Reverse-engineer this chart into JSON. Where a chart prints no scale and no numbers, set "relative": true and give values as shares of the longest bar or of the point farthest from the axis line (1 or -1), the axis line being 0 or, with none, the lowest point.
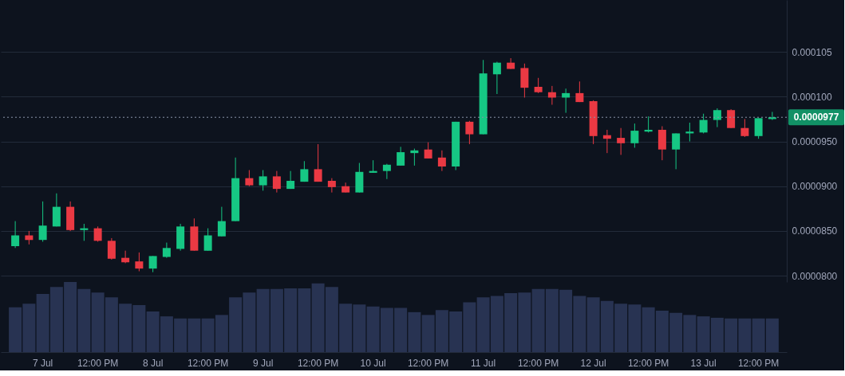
{
  "chart_data": [
    {
      "type": "candlestick",
      "categories": [
        null,
        null,
        null,
        null,
        null,
        null,
        null,
        null,
        null,
        null,
        null,
        null,
        null,
        null,
        null,
        null,
        null,
        null,
        null,
        null,
        null,
        null,
        null,
        null,
        null,
        null,
        null,
        null,
        null,
        null,
        null,
        null,
        null,
        null,
        null,
        null,
        null,
        null,
        null,
        null,
        null,
        null,
        null,
        null,
        null,
        null,
        null,
        null,
        null,
        null,
        null,
        null,
        null,
        null,
        null,
        null
      ],
      "ohlc": [
        [
          8.33e-05,
          8.61e-05,
          8.31e-05,
          8.45e-05
        ],
        [
          8.45e-05,
          8.5e-05,
          8.35e-05,
          8.4e-05
        ],
        [
          8.4e-05,
          8.83e-05,
          8.38e-05,
          8.56e-05
        ],
        [
          8.55e-05,
          8.92e-05,
          8.55e-05,
          8.77e-05
        ],
        [
          8.77e-05,
          8.83e-05,
          8.5e-05,
          8.51e-05
        ],
        [
          8.51e-05,
          8.58e-05,
          8.39e-05,
          8.53e-05
        ],
        [
          8.53e-05,
          8.55e-05,
          8.38e-05,
          8.39e-05
        ],
        [
          8.39e-05,
          8.42e-05,
          8.18e-05,
          8.19e-05
        ],
        [
          8.2e-05,
          8.28e-05,
          8.14e-05,
          8.15e-05
        ],
        [
          8.16e-05,
          8.26e-05,
          8.05e-05,
          8.08e-05
        ],
        [
          8.08e-05,
          8.22e-05,
          8.04e-05,
          8.22e-05
        ],
        [
          8.21e-05,
          8.37e-05,
          8.2e-05,
          8.31e-05
        ],
        [
          8.3e-05,
          8.58e-05,
          8.28e-05,
          8.55e-05
        ],
        [
          8.55e-05,
          8.64e-05,
          8.28e-05,
          8.28e-05
        ],
        [
          8.28e-05,
          8.53e-05,
          8.28e-05,
          8.45e-05
        ],
        [
          8.44e-05,
          8.77e-05,
          8.44e-05,
          8.61e-05
        ],
        [
          8.61e-05,
          9.32e-05,
          8.61e-05,
          9.09e-05
        ],
        [
          9.09e-05,
          9.18e-05,
          9e-05,
          9.01e-05
        ],
        [
          9.01e-05,
          9.18e-05,
          8.95e-05,
          9.11e-05
        ],
        [
          9.11e-05,
          9.17e-05,
          8.93e-05,
          8.97e-05
        ],
        [
          8.97e-05,
          9.17e-05,
          8.97e-05,
          9.06e-05
        ],
        [
          9.05e-05,
          9.28e-05,
          9.05e-05,
          9.19e-05
        ],
        [
          9.19e-05,
          9.47e-05,
          9.05e-05,
          9.05e-05
        ],
        [
          9.06e-05,
          9.09e-05,
          8.93e-05,
          8.99e-05
        ],
        [
          9e-05,
          9.04e-05,
          8.93e-05,
          8.93e-05
        ],
        [
          8.93e-05,
          9.26e-05,
          8.93e-05,
          9.16e-05
        ],
        [
          9.15e-05,
          9.29e-05,
          9.15e-05,
          9.17e-05
        ],
        [
          9.17e-05,
          9.25e-05,
          9.08e-05,
          9.24e-05
        ],
        [
          9.23e-05,
          9.44e-05,
          9.23e-05,
          9.38e-05
        ],
        [
          9.37e-05,
          9.42e-05,
          9.23e-05,
          9.4e-05
        ],
        [
          9.41e-05,
          9.49e-05,
          9.31e-05,
          9.31e-05
        ],
        [
          9.32e-05,
          9.4e-05,
          9.17e-05,
          9.22e-05
        ],
        [
          9.22e-05,
          9.72e-05,
          9.18e-05,
          9.72e-05
        ],
        [
          9.72e-05,
          9.73e-05,
          9.47e-05,
          9.58e-05
        ],
        [
          9.58e-05,
          0.0001041,
          9.58e-05,
          0.0001026
        ],
        [
          0.0001025,
          0.0001039,
          0.0001003,
          0.0001038
        ],
        [
          0.0001038,
          0.0001043,
          0.0001031,
          0.0001031
        ],
        [
          0.0001032,
          0.0001037,
          9.99e-05,
          0.000101
        ],
        [
          0.0001011,
          0.0001021,
          0.0001004,
          0.0001005
        ],
        [
          0.0001005,
          0.0001012,
          9.91e-05,
          9.99e-05
        ],
        [
          9.99e-05,
          0.0001009,
          9.82e-05,
          0.0001004
        ],
        [
          0.0001004,
          0.0001017,
          9.94e-05,
          9.94e-05
        ],
        [
          9.95e-05,
          9.96e-05,
          9.47e-05,
          9.56e-05
        ],
        [
          9.57e-05,
          9.63e-05,
          9.37e-05,
          9.53e-05
        ],
        [
          9.54e-05,
          9.65e-05,
          9.35e-05,
          9.48e-05
        ],
        [
          9.48e-05,
          9.7e-05,
          9.43e-05,
          9.62e-05
        ],
        [
          9.61e-05,
          9.78e-05,
          9.6e-05,
          9.63e-05
        ],
        [
          9.63e-05,
          9.67e-05,
          9.29e-05,
          9.41e-05
        ],
        [
          9.41e-05,
          9.59e-05,
          9.19e-05,
          9.59e-05
        ],
        [
          9.59e-05,
          9.71e-05,
          9.5e-05,
          9.61e-05
        ],
        [
          9.6e-05,
          9.81e-05,
          9.59e-05,
          9.74e-05
        ],
        [
          9.74e-05,
          9.87e-05,
          9.66e-05,
          9.85e-05
        ],
        [
          9.85e-05,
          9.86e-05,
          9.65e-05,
          9.65e-05
        ],
        [
          9.65e-05,
          9.75e-05,
          9.55e-05,
          9.56e-05
        ],
        [
          9.56e-05,
          9.76e-05,
          9.53e-05,
          9.76e-05
        ],
        [
          9.75e-05,
          9.83e-05,
          9.74e-05,
          9.77e-05
        ]
      ],
      "ylim": [
        7.93e-05,
        0.0001108
      ],
      "yticks": [
        {
          "value": 8e-05,
          "label": "0.0000800"
        },
        {
          "value": 8.5e-05,
          "label": "0.0000850"
        },
        {
          "value": 9e-05,
          "label": "0.0000900"
        },
        {
          "value": 9.5e-05,
          "label": "0.0000950"
        },
        {
          "value": 0.0001,
          "label": "0.000100"
        },
        {
          "value": 0.000105,
          "label": "0.000105"
        }
      ],
      "ref_lines": [
        {
          "axis": "y",
          "value": 9.77e-05,
          "label": "0.0000977",
          "color": "#8a93a8",
          "line_style": "dotted"
        }
      ],
      "grid": "y",
      "tick_labels": "y"
    },
    {
      "type": "bar",
      "categories": [
        null,
        null,
        "7 Jul",
        null,
        null,
        null,
        "12:00 PM",
        null,
        null,
        null,
        "8 Jul",
        null,
        null,
        null,
        "12:00 PM",
        null,
        null,
        null,
        "9 Jul",
        null,
        null,
        null,
        "12:00 PM",
        null,
        null,
        null,
        "10 Jul",
        null,
        null,
        null,
        "12:00 PM",
        null,
        null,
        null,
        "11 Jul",
        null,
        null,
        null,
        "12:00 PM",
        null,
        null,
        null,
        "12 Jul",
        null,
        null,
        null,
        "12:00 PM",
        null,
        null,
        null,
        "13 Jul",
        null,
        null,
        null,
        "12:00 PM",
        null
      ],
      "series": [
        {
          "color": "#283352",
          "values": [
            0.64,
            0.69,
            0.83,
            0.93,
            1,
            0.9,
            0.85,
            0.78,
            0.69,
            0.67,
            0.58,
            0.51,
            0.48,
            0.48,
            0.48,
            0.53,
            0.78,
            0.85,
            0.9,
            0.9,
            0.91,
            0.91,
            0.98,
            0.93,
            0.69,
            0.68,
            0.65,
            0.63,
            0.63,
            0.57,
            0.53,
            0.6,
            0.58,
            0.71,
            0.78,
            0.8,
            0.84,
            0.85,
            0.9,
            0.9,
            0.89,
            0.8,
            0.78,
            0.73,
            0.69,
            0.68,
            0.64,
            0.59,
            0.56,
            0.53,
            0.51,
            0.49,
            0.48,
            0.48,
            0.48,
            0.48
          ]
        }
      ],
      "relative": true,
      "tick_labels": "x"
    }
  ]
}
